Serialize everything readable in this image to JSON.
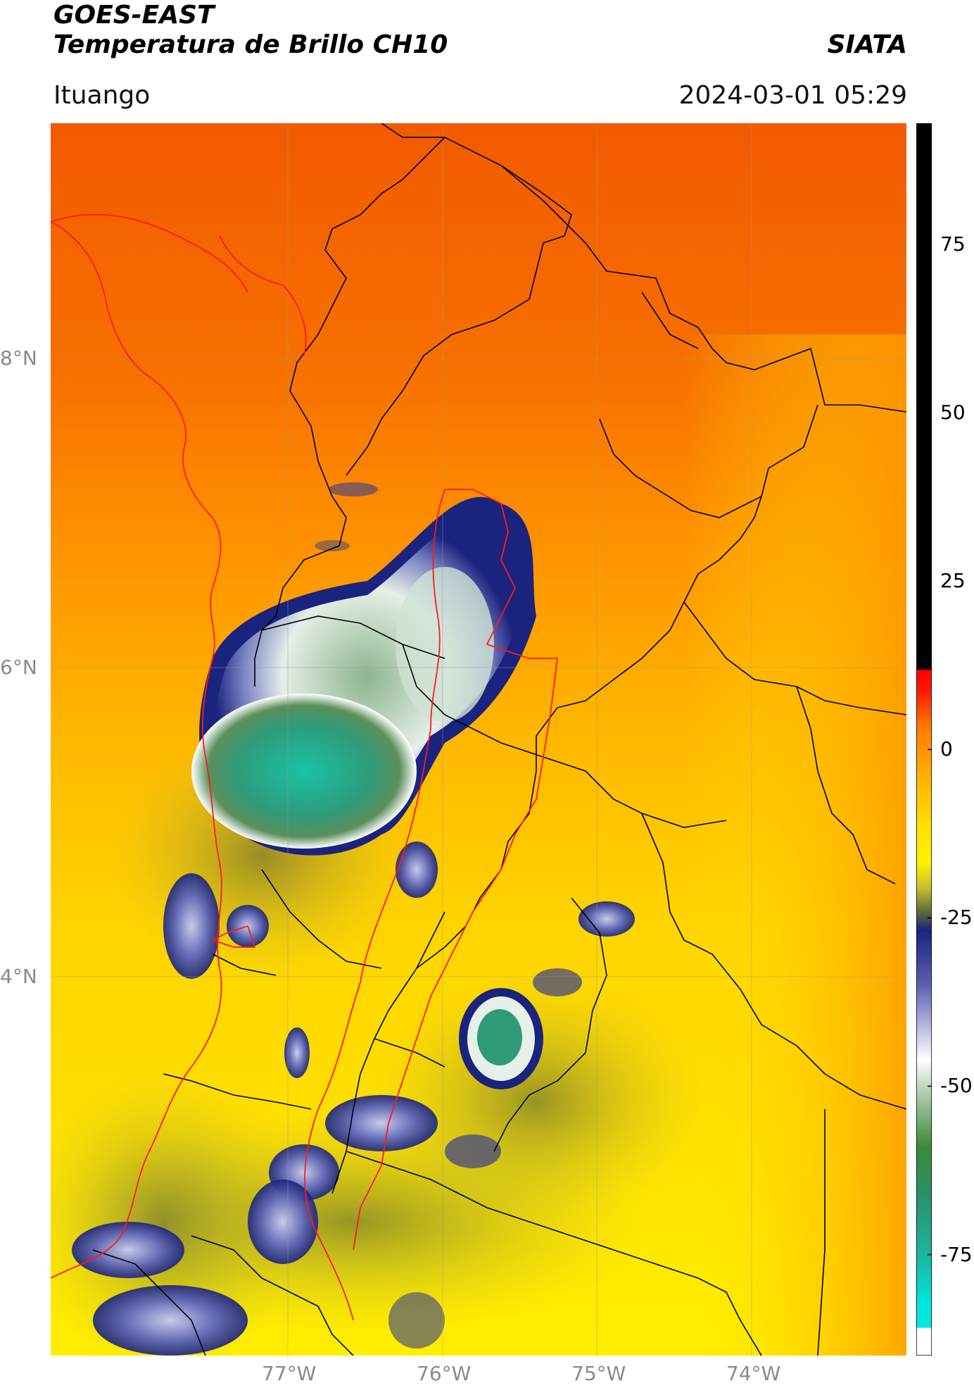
{
  "header": {
    "satellite": "GOES-EAST",
    "product": "Temperatura de Brillo CH10",
    "agency": "SIATA",
    "region": "Ituango",
    "datetime": "2024-03-01 05:29"
  },
  "map": {
    "lon_labels": [
      "77°W",
      "76°W",
      "75°W",
      "74°W"
    ],
    "lat_labels": [
      "8°N",
      "6°N",
      "4°N"
    ],
    "gridlines": true,
    "colors": {
      "warm_far": "#f25a00",
      "warm": "#ff8a00",
      "mid": "#ffc800",
      "cool": "#ffee00",
      "cold_edge": "#1a237e",
      "very_cold": "#e8f0ec",
      "coldest": "#2aa88a",
      "borders": "#000000",
      "admin_border": "#ff0000"
    }
  },
  "colorbar": {
    "ticks": [
      "75",
      "50",
      "25",
      "0",
      "-25",
      "-50",
      "-75"
    ],
    "tick_values": [
      75,
      50,
      25,
      0,
      -25,
      -50,
      -75
    ],
    "min": -90,
    "max": 93
  }
}
